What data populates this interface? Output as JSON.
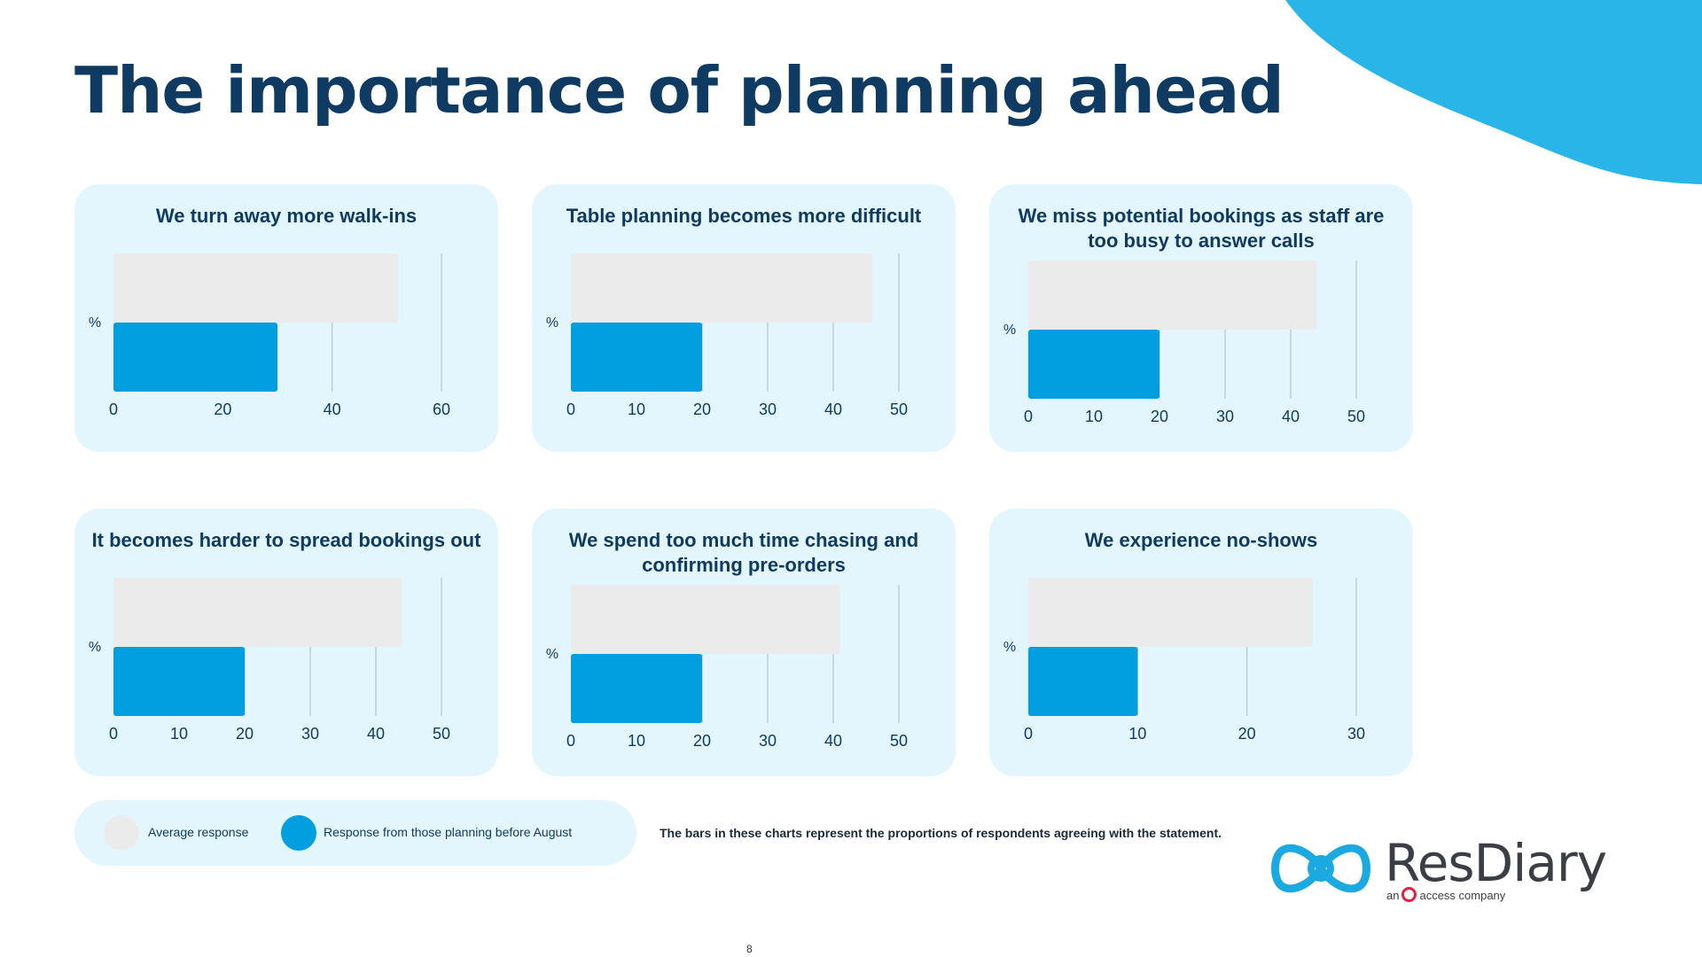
{
  "page": {
    "title": "The importance of planning ahead",
    "page_number": "8",
    "footnote": "The bars in these charts represent the proportions of respondents agreeing with the statement."
  },
  "colors": {
    "title": "#0f3b62",
    "card_bg": "#e4f6fd",
    "average_bar": "#ebebeb",
    "planner_bar": "#019fdf",
    "accent_blob": "#29b5e8"
  },
  "legend": {
    "average_label": "Average response",
    "planner_label": "Response from those planning before August"
  },
  "logo": {
    "name": "ResDiary",
    "tagline_prefix": "an",
    "tagline_suffix": "access company"
  },
  "chart_data": [
    {
      "type": "bar",
      "orientation": "horizontal",
      "title": "We turn away more walk-ins",
      "ylabel": "%",
      "xlim": [
        0,
        60
      ],
      "ticks": [
        0,
        20,
        40,
        60
      ],
      "series": [
        {
          "name": "Average response",
          "values": [
            52
          ]
        },
        {
          "name": "Response from those planning before August",
          "values": [
            30
          ]
        }
      ]
    },
    {
      "type": "bar",
      "orientation": "horizontal",
      "title": "Table planning becomes more difficult",
      "ylabel": "%",
      "xlim": [
        0,
        50
      ],
      "ticks": [
        0,
        10,
        20,
        30,
        40,
        50
      ],
      "series": [
        {
          "name": "Average response",
          "values": [
            46
          ]
        },
        {
          "name": "Response from those planning before August",
          "values": [
            20
          ]
        }
      ]
    },
    {
      "type": "bar",
      "orientation": "horizontal",
      "title": "We miss potential bookings as staff are too busy to answer calls",
      "ylabel": "%",
      "xlim": [
        0,
        50
      ],
      "ticks": [
        0,
        10,
        20,
        30,
        40,
        50
      ],
      "series": [
        {
          "name": "Average response",
          "values": [
            44
          ]
        },
        {
          "name": "Response from those planning before August",
          "values": [
            20
          ]
        }
      ]
    },
    {
      "type": "bar",
      "orientation": "horizontal",
      "title": "It becomes harder to spread bookings out",
      "ylabel": "%",
      "xlim": [
        0,
        50
      ],
      "ticks": [
        0,
        10,
        20,
        30,
        40,
        50
      ],
      "series": [
        {
          "name": "Average response",
          "values": [
            44
          ]
        },
        {
          "name": "Response from those planning before August",
          "values": [
            20
          ]
        }
      ]
    },
    {
      "type": "bar",
      "orientation": "horizontal",
      "title": "We spend too much time chasing and confirming pre-orders",
      "ylabel": "%",
      "xlim": [
        0,
        50
      ],
      "ticks": [
        0,
        10,
        20,
        30,
        40,
        50
      ],
      "series": [
        {
          "name": "Average response",
          "values": [
            41
          ]
        },
        {
          "name": "Response from those planning before August",
          "values": [
            20
          ]
        }
      ]
    },
    {
      "type": "bar",
      "orientation": "horizontal",
      "title": "We experience no-shows",
      "ylabel": "%",
      "xlim": [
        0,
        30
      ],
      "ticks": [
        0,
        10,
        20,
        30
      ],
      "series": [
        {
          "name": "Average response",
          "values": [
            26
          ]
        },
        {
          "name": "Response from those planning before August",
          "values": [
            10
          ]
        }
      ]
    }
  ]
}
